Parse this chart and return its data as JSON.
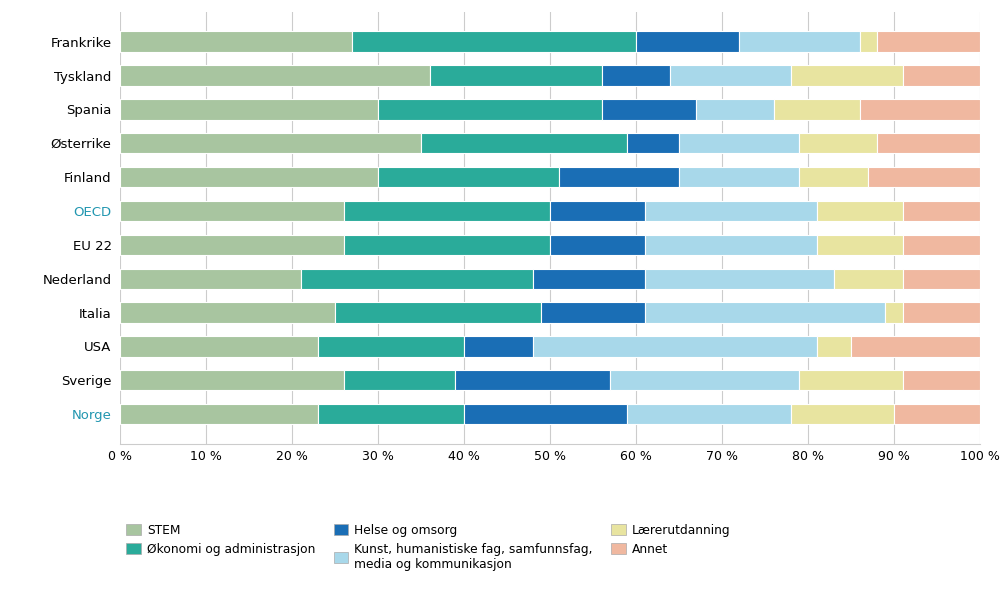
{
  "countries": [
    "Frankrike",
    "Tyskland",
    "Spania",
    "Østerrike",
    "Finland",
    "OECD",
    "EU 22",
    "Nederland",
    "Italia",
    "USA",
    "Sverige",
    "Norge"
  ],
  "oecd_highlight": [
    "OECD",
    "Norge"
  ],
  "series": {
    "STEM": [
      27,
      36,
      30,
      35,
      30,
      26,
      26,
      21,
      25,
      23,
      26,
      23
    ],
    "Økonomi og administrasjon": [
      33,
      20,
      26,
      24,
      21,
      24,
      24,
      27,
      24,
      17,
      13,
      17
    ],
    "Helse og omsorg": [
      12,
      8,
      11,
      6,
      14,
      11,
      11,
      13,
      12,
      8,
      18,
      19
    ],
    "Kunst, humanistiske fag, samfunnsfag, media og kommunikasjon": [
      14,
      14,
      9,
      14,
      14,
      20,
      20,
      22,
      28,
      33,
      22,
      19
    ],
    "Lærerutdanning": [
      2,
      13,
      10,
      9,
      8,
      10,
      10,
      8,
      2,
      4,
      12,
      12
    ],
    "Annet": [
      12,
      9,
      14,
      12,
      13,
      9,
      9,
      9,
      9,
      15,
      9,
      10
    ]
  },
  "colors": {
    "STEM": "#a8c5a0",
    "Økonomi og administrasjon": "#2aab9a",
    "Helse og omsorg": "#1a6eb5",
    "Kunst, humanistiske fag, samfunnsfag, media og kommunikasjon": "#a8d8ea",
    "Lærerutdanning": "#e8e4a0",
    "Annet": "#f0b8a0"
  },
  "oecd_color": "#2196b0",
  "normal_color": "#000000",
  "background_color": "#ffffff",
  "grid_color": "#cccccc",
  "bar_height": 0.6,
  "figsize": [
    10.0,
    5.92
  ],
  "dpi": 100,
  "legend": {
    "row1": [
      "STEM",
      "Økonomi og administrasjon",
      "Helse og omsorg"
    ],
    "row2": [
      "Kunst, humanistiske fag, samfunnsfag,\nmedia og kommunikasjon",
      "Lærerutdanning",
      "Annet"
    ]
  }
}
